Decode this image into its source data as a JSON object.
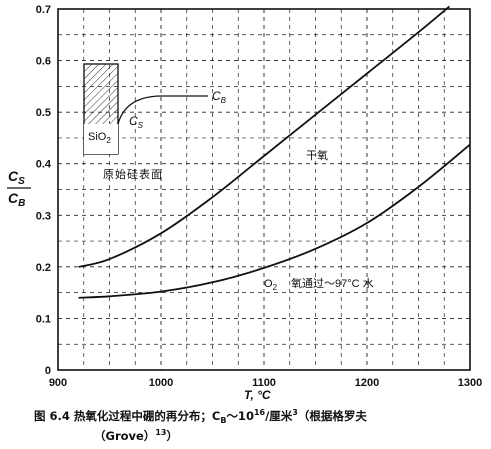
{
  "chart_data": {
    "type": "line",
    "xlabel": "T, °C",
    "ylabel_num": "C",
    "ylabel_num_sub": "S",
    "ylabel_den": "C",
    "ylabel_den_sub": "B",
    "xlim": [
      900,
      1300
    ],
    "ylim": [
      0,
      0.7
    ],
    "x_ticks": [
      900,
      1000,
      1100,
      1200,
      1300
    ],
    "y_ticks": [
      0,
      0.1,
      0.2,
      0.3,
      0.4,
      0.5,
      0.6,
      0.7
    ],
    "x_tick_labels": [
      "900",
      "1000",
      "1100",
      "1200",
      "1300"
    ],
    "y_tick_labels": [
      "0",
      "0.1",
      "0.2",
      "0.3",
      "0.4",
      "0.5",
      "0.6",
      "0.7"
    ],
    "grid": "dashed",
    "series": [
      {
        "name": "干氧",
        "x": [
          920,
          950,
          1000,
          1050,
          1100,
          1150,
          1200,
          1250,
          1280
        ],
        "y": [
          0.2,
          0.215,
          0.265,
          0.335,
          0.415,
          0.495,
          0.575,
          0.655,
          0.705
        ]
      },
      {
        "name": "O₂ 氧通过～97°C 水",
        "x": [
          920,
          950,
          1000,
          1050,
          1100,
          1150,
          1200,
          1250,
          1300
        ],
        "y": [
          0.14,
          0.143,
          0.152,
          0.17,
          0.198,
          0.235,
          0.285,
          0.355,
          0.437
        ]
      }
    ],
    "annotations": {
      "dry_label": "干氧",
      "wet_label_o2": "O",
      "wet_label_o2_sub": "2",
      "wet_label_rest": "氧通过～97°C 水",
      "inset_sio2": "SiO",
      "inset_sio2_sub": "2",
      "inset_cs": "C",
      "inset_cs_sub": "S",
      "inset_cb": "C",
      "inset_cb_sub": "B",
      "surface_label": "原始硅表面"
    }
  },
  "caption": {
    "line1": "图 6.4  热氧化过程中硼的再分布；C",
    "line1_sub": "B",
    "line1_rest": "～10",
    "line1_sup": "16",
    "line1_tail": "/厘米",
    "line1_sup2": "3",
    "line1_end": "（根据格罗夫",
    "line2": "（Grove）",
    "line2_sup": "13",
    "line2_end": "）"
  }
}
